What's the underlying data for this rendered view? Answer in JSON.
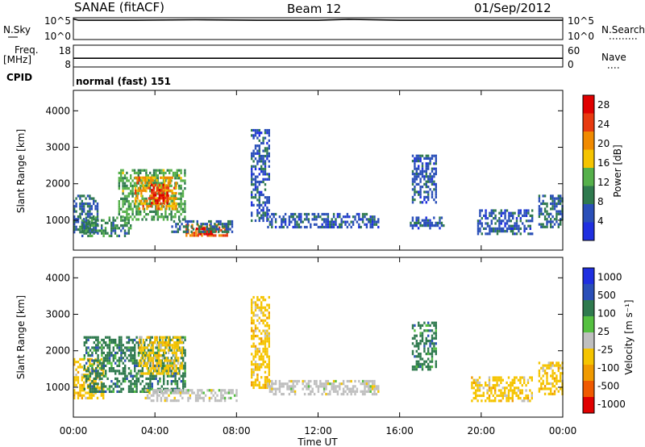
{
  "header": {
    "station": "SANAE (fitACF)",
    "beam": "Beam 12",
    "date": "01/Sep/2012"
  },
  "colors": {
    "power_scale": [
      "#1f2fe0",
      "#2a4fb8",
      "#2f7a4e",
      "#55b04a",
      "#f5c400",
      "#f08a00",
      "#e83a10",
      "#e00000"
    ],
    "velocity_scale": [
      "#e00000",
      "#f05a00",
      "#f09a00",
      "#f5c400",
      "#bfbfbf",
      "#55c040",
      "#2f7a4e",
      "#2a4fb8",
      "#1f2fe0"
    ]
  },
  "chart_data": [
    {
      "type": "line",
      "panel": "nsky-nsearch",
      "left_label": "N.Sky",
      "right_label": "N.Search",
      "left_ticks": [
        "10^5",
        "10^0"
      ],
      "right_ticks": [
        "10^5",
        "10^0"
      ],
      "x": [
        "00:00",
        "00:15",
        "03:00",
        "06:00",
        "09:00",
        "12:00",
        "13:30",
        "16:00",
        "18:00",
        "21:00",
        "24:00"
      ],
      "series": [
        {
          "values": [
            5,
            4.7,
            4.7,
            4.8,
            4.7,
            4.7,
            4.9,
            4.7,
            4.7,
            4.7,
            4.7
          ]
        }
      ]
    },
    {
      "type": "line",
      "panel": "freq-nave",
      "left_label": "Freq.",
      "left_unit": "[MHz]",
      "right_label": "Nave",
      "left_ticks": [
        18,
        8
      ],
      "right_ticks": [
        60,
        0
      ],
      "x": [
        "00:00",
        "00:30",
        "02:30",
        "06:00",
        "12:00",
        "18:00",
        "24:00"
      ],
      "series": [
        {
          "values": [
            12,
            12,
            12,
            12,
            12,
            12,
            12
          ]
        }
      ]
    },
    {
      "type": "table",
      "panel": "cpid",
      "label": "CPID",
      "text": "normal (fast) 151"
    },
    {
      "type": "heatmap",
      "panel": "power",
      "ylabel": "Slant Range [km]",
      "yticks": [
        1000,
        2000,
        3000,
        4000
      ],
      "ylim": [
        180,
        4560
      ],
      "xlim": [
        0,
        24
      ],
      "colorbar_label": "Power [dB]",
      "colorbar_ticks": [
        4,
        8,
        12,
        16,
        20,
        24,
        28
      ],
      "clim": [
        0,
        30
      ],
      "echo_regions": [
        {
          "t0": 0.0,
          "t1": 1.2,
          "r0": 700,
          "r1": 1700,
          "value": 8
        },
        {
          "t0": 0.3,
          "t1": 2.8,
          "r0": 600,
          "r1": 1100,
          "value": 10
        },
        {
          "t0": 2.2,
          "t1": 5.5,
          "r0": 1000,
          "r1": 2400,
          "value": 12
        },
        {
          "t0": 3.0,
          "t1": 5.0,
          "r0": 1300,
          "r1": 2200,
          "value": 20
        },
        {
          "t0": 3.8,
          "t1": 4.6,
          "r0": 1500,
          "r1": 2000,
          "value": 26
        },
        {
          "t0": 5.5,
          "t1": 7.5,
          "r0": 600,
          "r1": 900,
          "value": 22
        },
        {
          "t0": 6.0,
          "t1": 7.0,
          "r0": 650,
          "r1": 800,
          "value": 28
        },
        {
          "t0": 4.8,
          "t1": 7.8,
          "r0": 700,
          "r1": 1000,
          "value": 8
        },
        {
          "t0": 8.7,
          "t1": 9.6,
          "r0": 1000,
          "r1": 3500,
          "value": 6
        },
        {
          "t0": 9.5,
          "t1": 15.0,
          "r0": 800,
          "r1": 1200,
          "value": 6
        },
        {
          "t0": 16.6,
          "t1": 17.8,
          "r0": 1500,
          "r1": 2800,
          "value": 6
        },
        {
          "t0": 16.5,
          "t1": 18.2,
          "r0": 800,
          "r1": 1100,
          "value": 6
        },
        {
          "t0": 19.8,
          "t1": 22.5,
          "r0": 600,
          "r1": 1300,
          "value": 6
        },
        {
          "t0": 22.8,
          "t1": 24.0,
          "r0": 800,
          "r1": 1700,
          "value": 8
        }
      ]
    },
    {
      "type": "heatmap",
      "panel": "velocity",
      "ylabel": "Slant Range [km]",
      "yticks": [
        1000,
        2000,
        3000,
        4000
      ],
      "ylim": [
        180,
        4560
      ],
      "xlim": [
        0,
        24
      ],
      "xlabel": "Time UT",
      "xticks": [
        "00:00",
        "04:00",
        "08:00",
        "12:00",
        "16:00",
        "20:00",
        "00:00"
      ],
      "colorbar_label": "Velocity [m s⁻¹]",
      "colorbar_ticks": [
        "1000",
        "500",
        "100",
        "25",
        "-25",
        "-100",
        "-500",
        "-1000"
      ],
      "echo_regions": [
        {
          "t0": 0.0,
          "t1": 1.5,
          "r0": 700,
          "r1": 1800,
          "value": -100
        },
        {
          "t0": 0.5,
          "t1": 5.5,
          "r0": 900,
          "r1": 2400,
          "value": 100
        },
        {
          "t0": 3.2,
          "t1": 5.3,
          "r0": 1400,
          "r1": 2400,
          "value": -100
        },
        {
          "t0": 3.5,
          "t1": 8.0,
          "r0": 650,
          "r1": 950,
          "value": 0
        },
        {
          "t0": 8.7,
          "t1": 9.6,
          "r0": 1000,
          "r1": 3500,
          "value": -100
        },
        {
          "t0": 9.5,
          "t1": 15.0,
          "r0": 800,
          "r1": 1200,
          "value": 0
        },
        {
          "t0": 16.6,
          "t1": 17.8,
          "r0": 1500,
          "r1": 2800,
          "value": 100
        },
        {
          "t0": 19.5,
          "t1": 22.5,
          "r0": 600,
          "r1": 1300,
          "value": -100
        },
        {
          "t0": 22.8,
          "t1": 24.0,
          "r0": 800,
          "r1": 1700,
          "value": -100
        }
      ]
    }
  ]
}
